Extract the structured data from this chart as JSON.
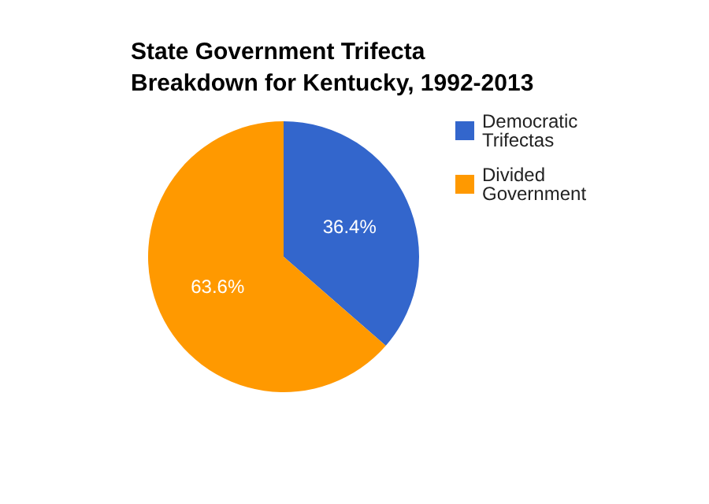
{
  "chart_data": {
    "type": "pie",
    "title": "State Government Trifecta\nBreakdown for Kentucky, 1992-2013",
    "categories": [
      "Democratic Trifectas",
      "Divided Government"
    ],
    "values": [
      36.4,
      63.6
    ],
    "colors": [
      "#3366cc",
      "#ff9900"
    ],
    "value_labels": [
      "36.4%",
      "63.6%"
    ],
    "legend": "right"
  }
}
